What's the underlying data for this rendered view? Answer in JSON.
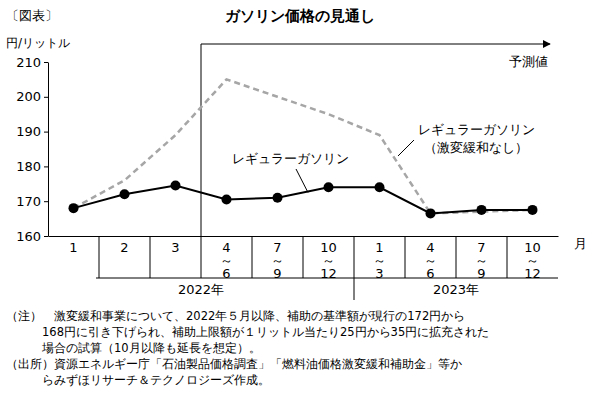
{
  "chart_data": {
    "type": "line",
    "figure_label": "〔図表〕",
    "title": "ガソリン価格の見通し",
    "y_label": "円/リットル",
    "x_label": "月",
    "categories": [
      "1",
      "2",
      "3",
      "4～6",
      "7～9",
      "10～12",
      "1～3",
      "4～6",
      "7～9",
      "10～12"
    ],
    "x_groups": [
      {
        "label": "2022年",
        "start": 0,
        "end": 5
      },
      {
        "label": "2023年",
        "start": 6,
        "end": 9
      }
    ],
    "forecast": {
      "label": "予測値",
      "start": 3
    },
    "series": [
      {
        "name": "レギュラーガソリン",
        "color": "#000000",
        "line_style": "solid",
        "marker": "circle",
        "values": [
          168,
          172,
          174.5,
          170.5,
          171,
          174,
          174,
          166.5,
          167.5,
          167.5
        ]
      },
      {
        "name": "レギュラーガソリン（激変緩和なし）",
        "color": "#a6a6a6",
        "line_style": "dashed",
        "marker": "none",
        "values": [
          168,
          176,
          189,
          205,
          200,
          195,
          189,
          166.5,
          167,
          167.5
        ]
      }
    ],
    "ylim": [
      160,
      210
    ],
    "yticks": [
      160,
      170,
      180,
      190,
      200,
      210
    ],
    "grid": false,
    "notes": [
      "（注）　激変緩和事業について、2022年５月以降、補助の基準額が現行の172円から",
      "　　　168円に引き下げられ、補助上限額が１リットル当たり25円から35円に拡充された",
      "　　　場合の試算（10月以降も延長を想定）。"
    ],
    "source": [
      "（出所）資源エネルギー庁「石油製品価格調査」「燃料油価格激変緩和補助金」等か",
      "　　　らみずほリサーチ＆テクノロジーズ作成。"
    ]
  }
}
